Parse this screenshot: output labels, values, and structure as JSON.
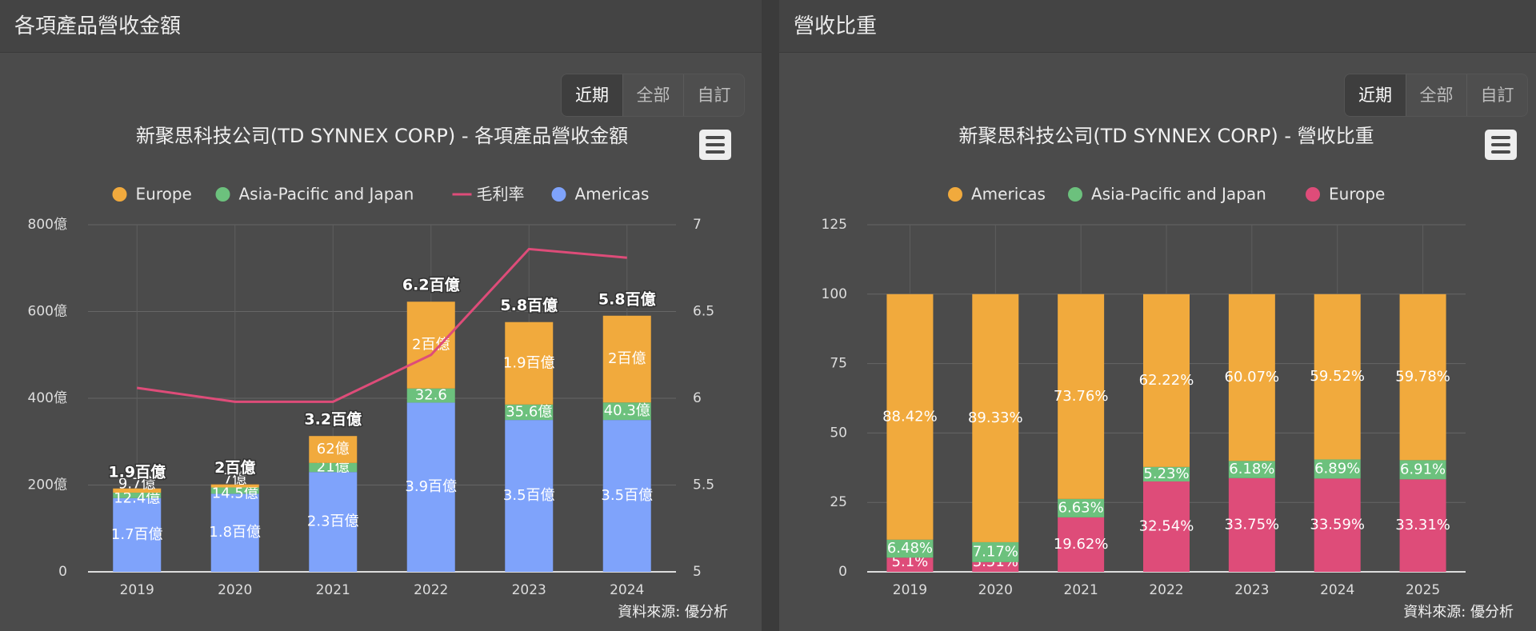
{
  "left_panel": {
    "title": "各項產品營收金額",
    "range_buttons": [
      "近期",
      "全部",
      "自訂"
    ],
    "source": "資料來源: 優分析"
  },
  "right_panel": {
    "title": "營收比重",
    "range_buttons": [
      "近期",
      "全部",
      "自訂"
    ],
    "source": "資料來源: 優分析"
  },
  "colors": {
    "americas": "#7fa3fb",
    "asia": "#6cc17d",
    "europe_left": "#f1aa3d",
    "europe_right": "#de4c79",
    "americas_right": "#f1aa3d",
    "margin_line": "#de4c79"
  },
  "chart_data": [
    {
      "type": "bar",
      "stacked": true,
      "title": "新聚思科技公司(TD SYNNEX CORP) - 各項產品營收金額",
      "legend": [
        "Europe",
        "Asia-Pacific and Japan",
        "毛利率",
        "Americas"
      ],
      "legend_position": "top",
      "categories": [
        "2019",
        "2020",
        "2021",
        "2022",
        "2023",
        "2024"
      ],
      "y_ticks": [
        "0",
        "200億",
        "400億",
        "600億",
        "800億"
      ],
      "ylim": [
        0,
        800
      ],
      "y2_ticks": [
        "5",
        "5.5",
        "6",
        "6.5",
        "7"
      ],
      "y2lim": [
        5,
        7
      ],
      "series": [
        {
          "name": "Americas",
          "values": [
            170,
            180,
            230,
            390,
            350,
            350
          ],
          "labels": [
            "1.7百億",
            "1.8百億",
            "2.3百億",
            "3.9百億",
            "3.5百億",
            "3.5百億"
          ]
        },
        {
          "name": "Asia-Pacific and Japan",
          "values": [
            12.4,
            14.5,
            21,
            32.6,
            35.6,
            40.3
          ],
          "labels": [
            "12.4億",
            "14.5億",
            "21億",
            "32.6",
            "35.6億",
            "40.3億"
          ]
        },
        {
          "name": "Europe",
          "values": [
            9.7,
            7,
            62,
            200,
            190,
            200
          ],
          "labels": [
            "9.7億",
            "7億",
            "62億",
            "2百億",
            "1.9百億",
            "2百億"
          ]
        }
      ],
      "totals": [
        "1.9百億",
        "2百億",
        "3.2百億",
        "6.2百億",
        "5.8百億",
        "5.8百億"
      ],
      "line": {
        "name": "毛利率",
        "values": [
          6.06,
          5.98,
          5.98,
          6.25,
          6.86,
          6.81
        ]
      },
      "grid": true
    },
    {
      "type": "bar",
      "stacked": true,
      "title": "新聚思科技公司(TD SYNNEX CORP) - 營收比重",
      "legend": [
        "Americas",
        "Asia-Pacific and Japan",
        "Europe"
      ],
      "legend_position": "top",
      "categories": [
        "2019",
        "2020",
        "2021",
        "2022",
        "2023",
        "2024",
        "2025"
      ],
      "y_ticks": [
        "0",
        "25",
        "50",
        "75",
        "100",
        "125"
      ],
      "ylim": [
        0,
        125
      ],
      "series": [
        {
          "name": "Europe",
          "values": [
            5.1,
            3.51,
            19.62,
            32.54,
            33.75,
            33.59,
            33.31
          ],
          "labels": [
            "5.1%",
            "3.51%",
            "19.62%",
            "32.54%",
            "33.75%",
            "33.59%",
            "33.31%"
          ]
        },
        {
          "name": "Asia-Pacific and Japan",
          "values": [
            6.48,
            7.17,
            6.63,
            5.23,
            6.18,
            6.89,
            6.91
          ],
          "labels": [
            "6.48%",
            "7.17%",
            "6.63%",
            "5.23%",
            "6.18%",
            "6.89%",
            "6.91%"
          ]
        },
        {
          "name": "Americas",
          "values": [
            88.42,
            89.33,
            73.76,
            62.22,
            60.07,
            59.52,
            59.78
          ],
          "labels": [
            "88.42%",
            "89.33%",
            "73.76%",
            "62.22%",
            "60.07%",
            "59.52%",
            "59.78%"
          ]
        }
      ],
      "grid": true
    }
  ]
}
